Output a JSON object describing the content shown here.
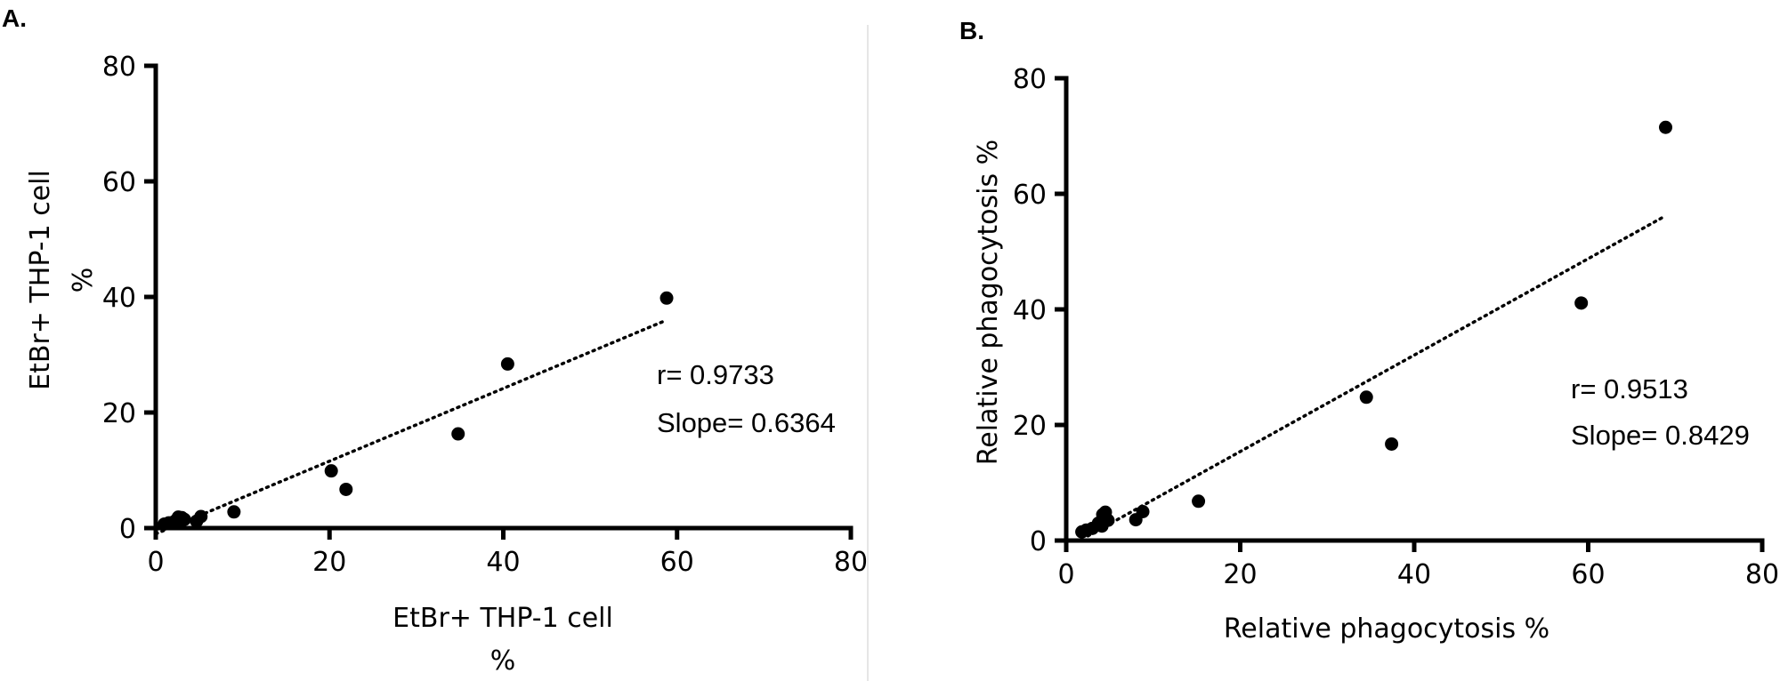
{
  "figure": {
    "background": "#ffffff",
    "divider_color": "#e6e6e6",
    "point_color": "#000000"
  },
  "chart_data": [
    {
      "panel": "A.",
      "type": "scatter",
      "xlabel": "EtBr+ THP-1 cell",
      "xlabel_unit": "%",
      "ylabel": "EtBr+ THP-1 cell",
      "ylabel_unit": "%",
      "xlim": [
        0,
        80
      ],
      "ylim": [
        0,
        80
      ],
      "xticks": [
        0,
        20,
        40,
        60,
        80
      ],
      "yticks": [
        0,
        20,
        40,
        60,
        80
      ],
      "x": [
        1.0,
        1.5,
        2.0,
        2.3,
        2.6,
        2.8,
        3.0,
        3.3,
        4.7,
        5.2,
        9.0,
        20.2,
        21.9,
        34.8,
        40.5,
        58.8
      ],
      "y": [
        0.7,
        0.9,
        1.0,
        1.3,
        1.9,
        1.4,
        1.8,
        1.5,
        1.2,
        2.0,
        2.8,
        9.9,
        6.7,
        16.3,
        28.4,
        39.8
      ],
      "fit": {
        "x": [
          0,
          58.8
        ],
        "y": [
          -1.0,
          36.0
        ],
        "style": "dotted"
      },
      "r_label": "r= 0.9733",
      "slope_label": "Slope= 0.6364"
    },
    {
      "panel": "B.",
      "type": "scatter",
      "xlabel": "Relative phagocytosis %",
      "ylabel": "Relative phagocytosis %",
      "xlim": [
        0,
        80
      ],
      "ylim": [
        0,
        80
      ],
      "xticks": [
        0,
        20,
        40,
        60,
        80
      ],
      "yticks": [
        0,
        20,
        40,
        60,
        80
      ],
      "x": [
        1.8,
        2.3,
        3.0,
        3.7,
        4.1,
        4.3,
        4.5,
        4.8,
        4.2,
        8.0,
        8.8,
        15.2,
        34.5,
        37.4,
        59.2,
        68.9
      ],
      "y": [
        1.5,
        1.8,
        2.1,
        3.0,
        2.5,
        3.8,
        4.9,
        3.5,
        4.5,
        3.6,
        5.0,
        6.8,
        24.8,
        16.7,
        41.1,
        71.5
      ],
      "fit": {
        "x": [
          2.5,
          68.9
        ],
        "y": [
          0.8,
          56.2
        ],
        "style": "dotted"
      },
      "r_label": "r= 0.9513",
      "slope_label": "Slope= 0.8429"
    }
  ]
}
